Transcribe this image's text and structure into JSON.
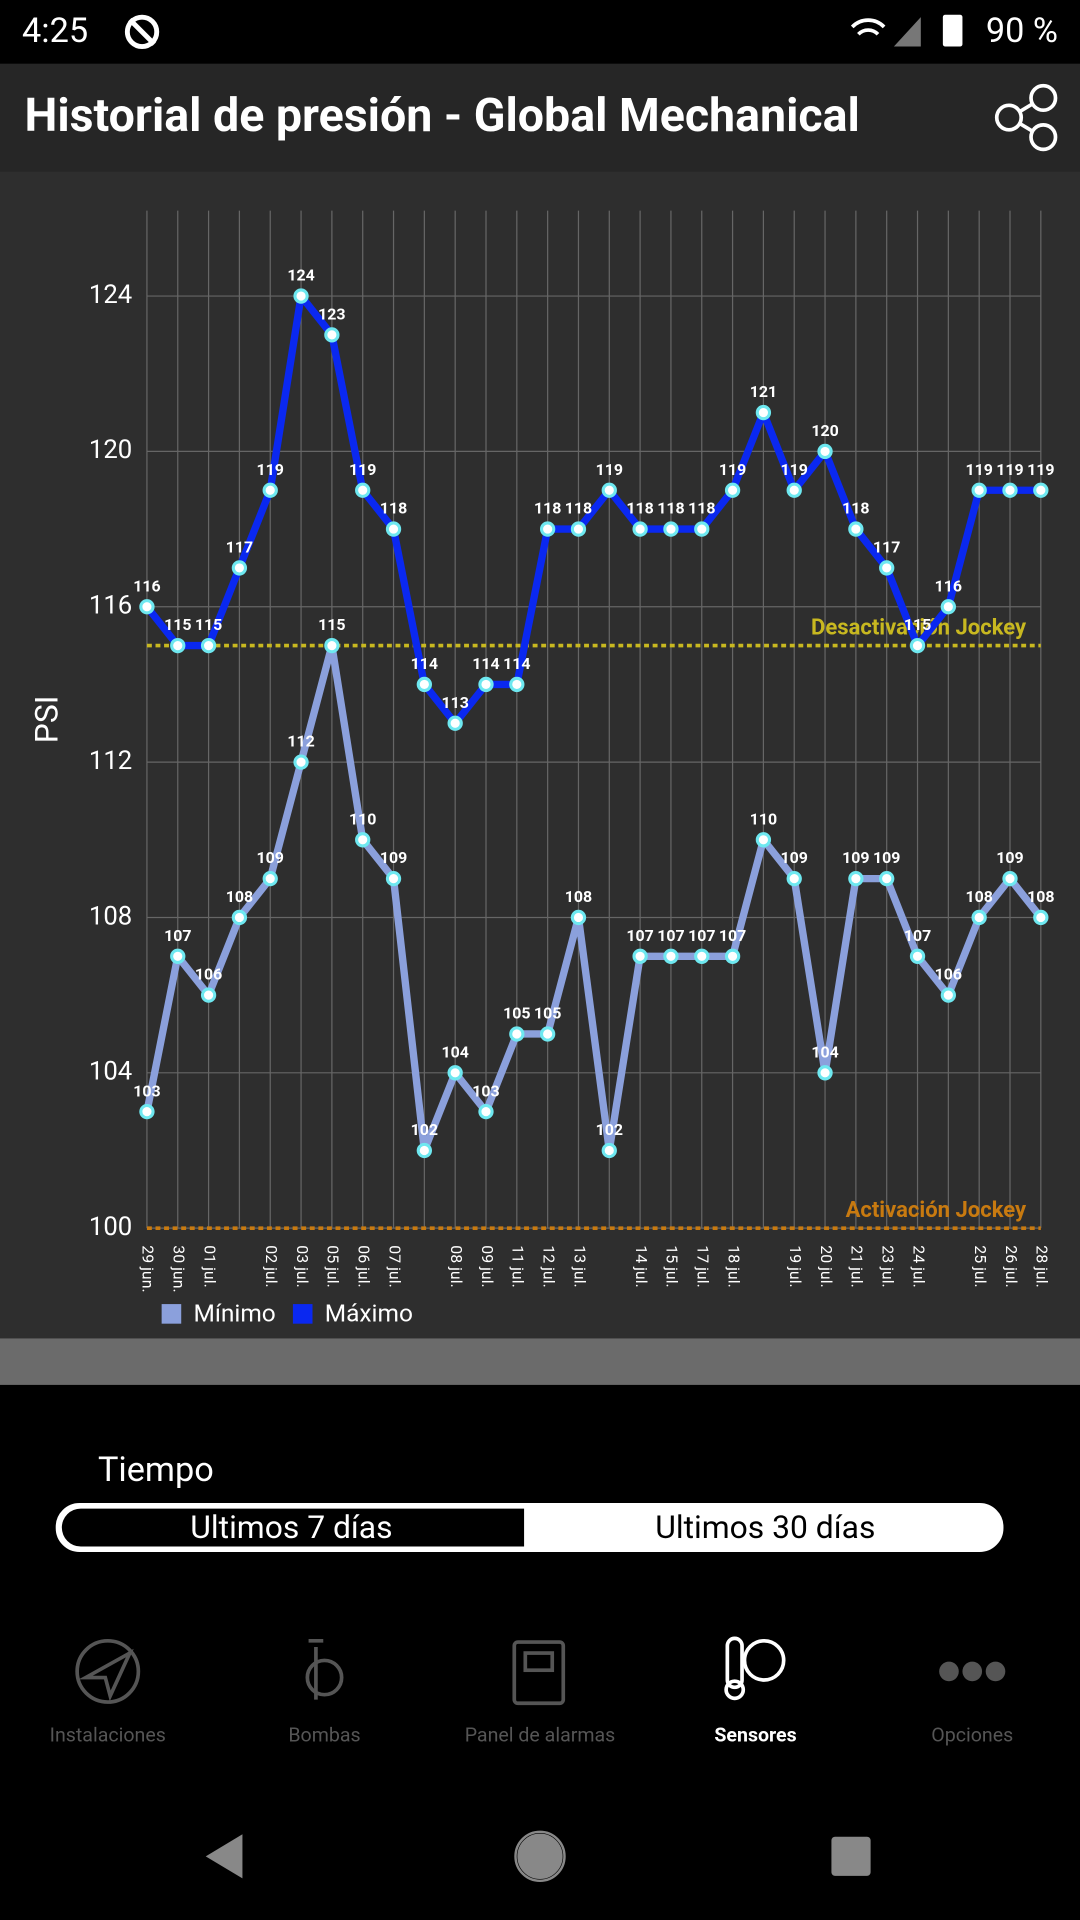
{
  "status_bar": {
    "time": "4:25",
    "battery": "90 %"
  },
  "header": {
    "title": "Historial de presión - Global Mechanical"
  },
  "chart_data": {
    "type": "line",
    "y_label": "PSI",
    "categories": [
      "29 jun.",
      "30 jun.",
      "01 jul.",
      null,
      "02 jul.",
      "03 jul.",
      "05 jul.",
      "06 jul.",
      "07 jul.",
      null,
      "08 jul.",
      "09 jul.",
      "11 jul.",
      "12 jul.",
      "13 jul.",
      null,
      "14 jul.",
      "15 jul.",
      "17 jul.",
      "18 jul.",
      null,
      "19 jul.",
      "20 jul.",
      "21 jul.",
      "23 jul.",
      "24 jul.",
      null,
      "25 jul.",
      "26 jul.",
      "28 jul."
    ],
    "series": [
      {
        "name": "Mínimo",
        "color": "#8ba0dc",
        "values": [
          103,
          107,
          106,
          108,
          109,
          112,
          115,
          110,
          109,
          102,
          104,
          103,
          105,
          105,
          108,
          102,
          107,
          107,
          107,
          107,
          110,
          109,
          104,
          109,
          109,
          107,
          106,
          108,
          109,
          108
        ]
      },
      {
        "name": "Máximo",
        "color": "#0a28f0",
        "values": [
          116,
          115,
          115,
          117,
          119,
          124,
          123,
          119,
          118,
          114,
          113,
          114,
          114,
          118,
          118,
          119,
          118,
          118,
          118,
          119,
          121,
          119,
          120,
          118,
          117,
          115,
          116,
          119,
          119,
          119
        ]
      }
    ],
    "limit_lines": [
      {
        "label": "Desactivación Jockey",
        "value": 115,
        "color": "#c8b820"
      },
      {
        "label": "Activación Jockey",
        "value": 100,
        "color": "#c87a10"
      }
    ],
    "ylim": [
      100,
      126.2
    ],
    "yticks": [
      100,
      104,
      108,
      112,
      116,
      120,
      124
    ],
    "grid": true
  },
  "time_selector": {
    "label": "Tiempo",
    "options": [
      "Ultimos 7 días",
      "Ultimos 30 días"
    ]
  },
  "nav": [
    "Instalaciones",
    "Bombas",
    "Panel de alarmas",
    "Sensores",
    "Opciones"
  ]
}
